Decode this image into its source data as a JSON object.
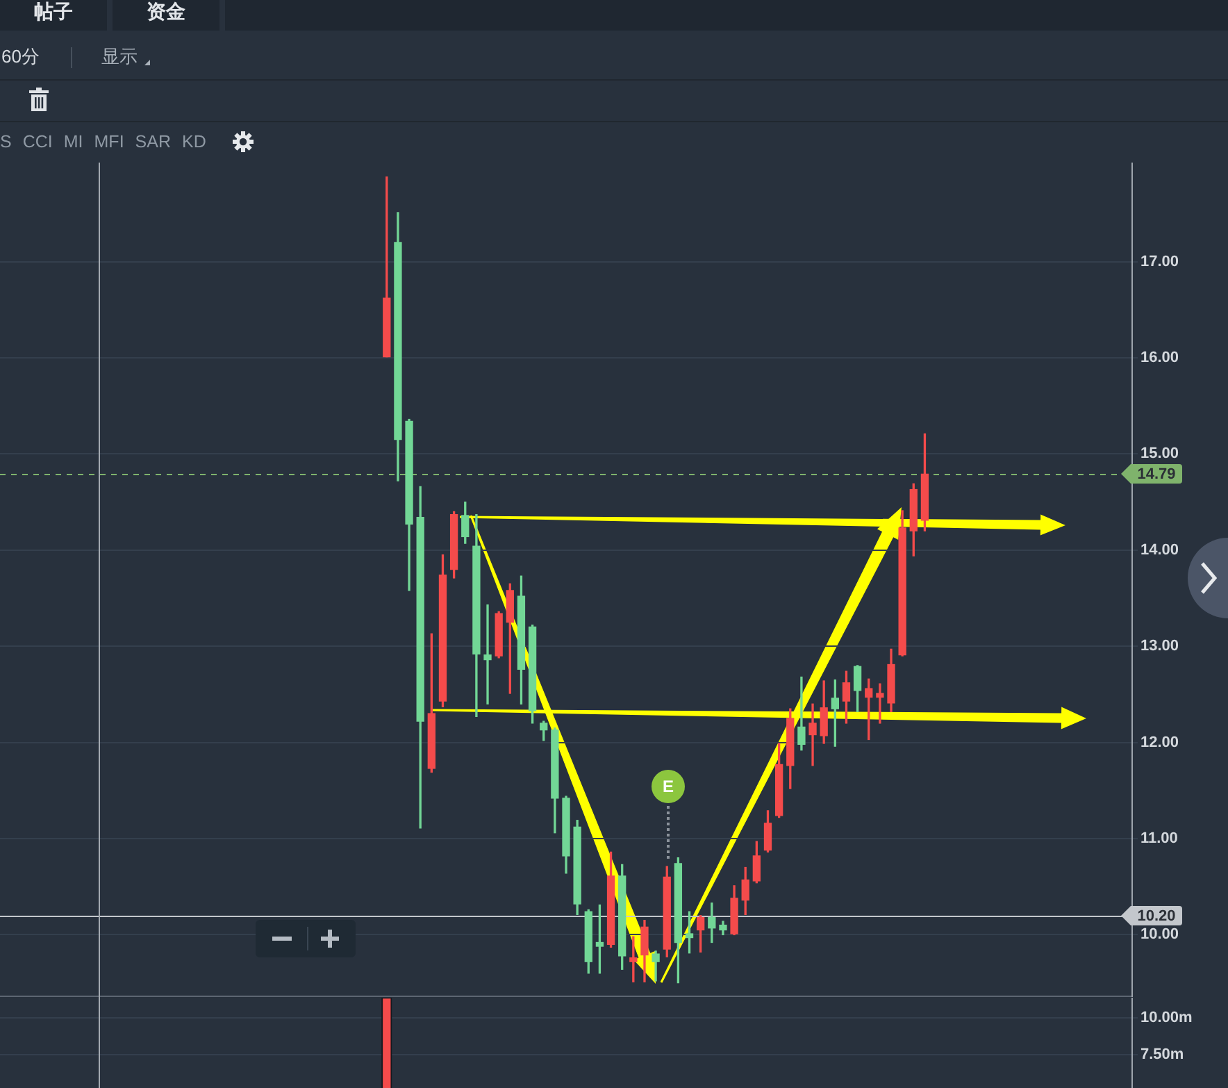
{
  "chart_data": [
    {
      "type": "other",
      "annotations": [
        "帖子",
        "资金",
        "60分",
        "显示",
        "S",
        "CCI",
        "MI",
        "MFI",
        "SAR",
        "KD"
      ]
    },
    {
      "type": "candlestick",
      "categories": [
        null,
        null,
        null,
        null,
        null,
        null,
        null,
        null,
        null,
        null,
        null,
        null,
        null,
        null,
        null,
        null,
        null,
        null,
        null,
        null,
        null,
        null,
        null,
        null,
        null,
        null,
        null,
        null,
        null,
        null,
        null,
        null,
        null,
        null,
        null,
        null,
        null,
        null,
        null,
        null,
        null,
        null,
        null,
        null,
        null,
        null,
        null,
        null,
        null,
        null,
        null,
        null,
        null,
        null,
        null,
        null,
        null,
        null,
        null,
        null,
        null,
        null,
        null,
        null,
        null,
        null,
        null,
        null,
        null,
        null,
        null,
        null,
        null,
        null,
        null,
        null,
        null,
        null,
        null,
        null,
        null,
        null,
        null,
        null,
        null,
        null,
        null,
        null,
        null,
        null,
        null,
        null,
        null,
        null,
        null,
        null,
        null,
        null,
        null,
        null,
        null
      ],
      "ohlc": [
        null,
        null,
        null,
        null,
        null,
        null,
        null,
        null,
        null,
        null,
        null,
        null,
        null,
        null,
        null,
        null,
        null,
        null,
        null,
        null,
        null,
        null,
        null,
        null,
        null,
        null,
        null,
        null,
        null,
        null,
        null,
        null,
        null,
        null,
        [
          16.01,
          17.88,
          16.01,
          16.62
        ],
        [
          17.2,
          17.51,
          14.72,
          15.15
        ],
        [
          15.34,
          15.36,
          13.58,
          14.27
        ],
        [
          14.34,
          14.66,
          11.11,
          12.22
        ],
        [
          11.73,
          13.13,
          11.69,
          12.3
        ],
        [
          12.43,
          13.95,
          12.37,
          13.74
        ],
        [
          13.8,
          14.4,
          13.71,
          14.37
        ],
        [
          14.36,
          14.5,
          14.07,
          14.14
        ],
        [
          14.04,
          14.37,
          12.27,
          12.92
        ],
        [
          12.91,
          13.43,
          12.4,
          12.86
        ],
        [
          12.9,
          13.36,
          12.88,
          13.34
        ],
        [
          13.25,
          13.65,
          12.51,
          13.58
        ],
        [
          13.52,
          13.73,
          12.4,
          12.76
        ],
        [
          13.2,
          13.22,
          12.2,
          12.33
        ],
        [
          12.2,
          12.22,
          12.02,
          12.13
        ],
        [
          12.13,
          12.15,
          11.06,
          11.42
        ],
        [
          11.42,
          11.44,
          10.64,
          10.82
        ],
        [
          11.12,
          11.19,
          10.21,
          10.32
        ],
        [
          10.24,
          10.26,
          9.6,
          9.72
        ],
        [
          9.92,
          10.31,
          9.6,
          9.88
        ],
        [
          9.9,
          10.86,
          9.87,
          10.61
        ],
        [
          10.61,
          10.73,
          9.64,
          9.78
        ],
        [
          9.72,
          9.98,
          9.51,
          9.76
        ],
        [
          9.79,
          10.15,
          9.51,
          10.08
        ],
        [
          9.8,
          9.83,
          9.52,
          9.72
        ],
        [
          9.85,
          10.71,
          9.77,
          10.6
        ],
        [
          10.74,
          10.8,
          9.5,
          9.92
        ],
        [
          10.01,
          10.24,
          9.81,
          9.97
        ],
        [
          10.05,
          10.2,
          9.82,
          10.18
        ],
        [
          10.18,
          10.33,
          9.92,
          10.07
        ],
        [
          10.1,
          10.14,
          10,
          10.05
        ],
        [
          10.01,
          10.51,
          10,
          10.38
        ],
        [
          10.36,
          10.7,
          10.21,
          10.57
        ],
        [
          10.56,
          10.97,
          10.54,
          10.82
        ],
        [
          10.88,
          11.29,
          10.86,
          11.16
        ],
        [
          11.24,
          11.99,
          11.22,
          11.77
        ],
        [
          11.76,
          12.35,
          11.52,
          12.25
        ],
        [
          12.16,
          12.68,
          11.92,
          11.98
        ],
        [
          12.08,
          12.4,
          11.76,
          12.2
        ],
        [
          12.07,
          12.64,
          11.99,
          12.36
        ],
        [
          12.46,
          12.65,
          11.96,
          12.35
        ],
        [
          12.43,
          12.74,
          12.2,
          12.62
        ],
        [
          12.79,
          12.8,
          12.32,
          12.54
        ],
        [
          12.47,
          12.66,
          12.03,
          12.56
        ],
        [
          12.47,
          12.61,
          12.2,
          12.51
        ],
        [
          12.41,
          12.97,
          12.32,
          12.81
        ],
        [
          12.91,
          14.41,
          12.9,
          14.23
        ],
        [
          14.2,
          14.69,
          13.94,
          14.63
        ],
        [
          14.31,
          15.21,
          14.2,
          14.79
        ],
        null,
        null,
        null,
        null,
        null,
        null,
        null,
        null,
        null,
        null,
        null,
        null,
        null,
        null,
        null,
        null,
        null,
        null
      ],
      "colors": [
        null,
        null,
        null,
        null,
        null,
        null,
        null,
        null,
        null,
        null,
        null,
        null,
        null,
        null,
        null,
        null,
        null,
        null,
        null,
        null,
        null,
        null,
        null,
        null,
        null,
        null,
        null,
        null,
        null,
        null,
        null,
        null,
        null,
        null,
        "#f44b4b",
        "#72d796",
        "#72d796",
        "#72d796",
        "#f44b4b",
        "#f44b4b",
        "#f44b4b",
        "#72d796",
        "#72d796",
        "#72d796",
        "#f44b4b",
        "#f44b4b",
        "#72d796",
        "#72d796",
        "#72d796",
        "#72d796",
        "#72d796",
        "#72d796",
        "#72d796",
        "#72d796",
        "#f44b4b",
        "#72d796",
        "#f44b4b",
        "#f44b4b",
        "#72d796",
        "#f44b4b",
        "#72d796",
        "#72d796",
        "#f44b4b",
        "#72d796",
        "#72d796",
        "#f44b4b",
        "#f44b4b",
        "#f44b4b",
        "#f44b4b",
        "#f44b4b",
        "#f44b4b",
        "#72d796",
        "#f44b4b",
        "#f44b4b",
        "#72d796",
        "#f44b4b",
        "#72d796",
        "#f44b4b",
        "#f44b4b",
        "#f44b4b",
        "#f44b4b",
        "#f44b4b",
        "#f44b4b",
        null,
        null,
        null,
        null,
        null,
        null,
        null,
        null,
        null,
        null,
        null,
        null,
        null,
        null,
        null,
        null,
        null,
        null
      ],
      "ylim": [
        9.36,
        18.03
      ],
      "yticks": [
        {
          "value": 10,
          "label": "10.00"
        },
        {
          "value": 11,
          "label": "11.00"
        },
        {
          "value": 12,
          "label": "12.00"
        },
        {
          "value": 13,
          "label": "13.00"
        },
        {
          "value": 14,
          "label": "14.00"
        },
        {
          "value": 15,
          "label": "15.00"
        },
        {
          "value": 16,
          "label": "16.00"
        },
        {
          "value": 17,
          "label": "17.00"
        }
      ],
      "grid": "y",
      "tick_labels": "y",
      "ref_lines": [
        {
          "axis": "y",
          "value": 14.79,
          "label": "14.79",
          "color": "#7fb36c",
          "line_style": "dashed"
        },
        {
          "axis": "y",
          "value": 10.2,
          "label": "10.20",
          "color": "#c3c7cc",
          "line_style": "solid"
        }
      ],
      "annotations": [
        "E"
      ]
    },
    {
      "type": "bar",
      "categories": [
        null,
        null,
        null,
        null,
        null,
        null,
        null,
        null,
        null,
        null,
        null,
        null,
        null,
        null,
        null,
        null,
        null,
        null,
        null,
        null,
        null,
        null,
        null,
        null,
        null,
        null,
        null,
        null,
        null,
        null,
        null,
        null,
        null,
        null,
        null,
        null,
        null,
        null,
        null,
        null,
        null,
        null,
        null,
        null,
        null,
        null,
        null,
        null,
        null,
        null,
        null,
        null,
        null,
        null,
        null,
        null,
        null,
        null,
        null,
        null,
        null,
        null,
        null,
        null,
        null,
        null,
        null,
        null,
        null,
        null,
        null,
        null,
        null,
        null,
        null,
        null,
        null,
        null,
        null,
        null,
        null,
        null,
        null,
        null,
        null,
        null,
        null,
        null,
        null,
        null,
        null,
        null,
        null,
        null,
        null,
        null,
        null,
        null,
        null,
        null,
        null
      ],
      "values": [
        null,
        null,
        null,
        null,
        null,
        null,
        null,
        null,
        null,
        null,
        null,
        null,
        null,
        null,
        null,
        null,
        null,
        null,
        null,
        null,
        null,
        null,
        null,
        null,
        null,
        null,
        null,
        null,
        null,
        null,
        null,
        null,
        null,
        null,
        11.4,
        null,
        null,
        null,
        null,
        null,
        null,
        null,
        null,
        null,
        null,
        null,
        null,
        null,
        null,
        null,
        null,
        null,
        null,
        null,
        null,
        null,
        null,
        null,
        null,
        null,
        null,
        null,
        null,
        null,
        null,
        null,
        null,
        null,
        null,
        null,
        null,
        null,
        null,
        null,
        null,
        null,
        null,
        null,
        null,
        null,
        null,
        null,
        null,
        null,
        null,
        null,
        null,
        null,
        null,
        null,
        null,
        null,
        null,
        null,
        null,
        null,
        null,
        null,
        null,
        null,
        null
      ],
      "color": "#f44b4b",
      "ylim": [
        5.2,
        11.4
      ],
      "yticks": [
        {
          "value": 7.5,
          "label": "7.50m"
        },
        {
          "value": 10,
          "label": "10.00m"
        }
      ],
      "grid": "y",
      "tick_labels": "y"
    }
  ]
}
